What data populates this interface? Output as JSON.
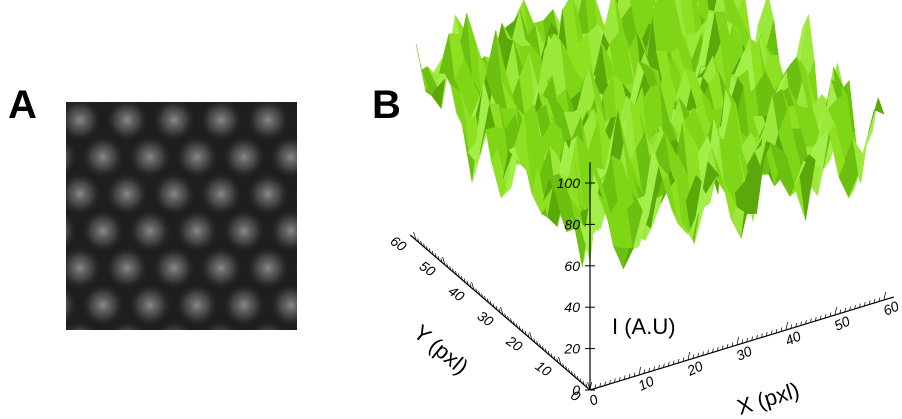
{
  "panels": [
    {
      "label": "A"
    },
    {
      "label": "B",
      "z_axis": {
        "label": "I (A.U)",
        "ticks": [
          "0",
          "20",
          "40",
          "60",
          "80",
          "100"
        ]
      },
      "y_axis": {
        "label": "Y (pxl)",
        "ticks": [
          "0",
          "10",
          "20",
          "30",
          "40",
          "50",
          "60"
        ]
      },
      "x_axis": {
        "label": "X (pxl)",
        "ticks": [
          "0",
          "10",
          "20",
          "30",
          "40",
          "50",
          "60"
        ]
      }
    }
  ]
}
